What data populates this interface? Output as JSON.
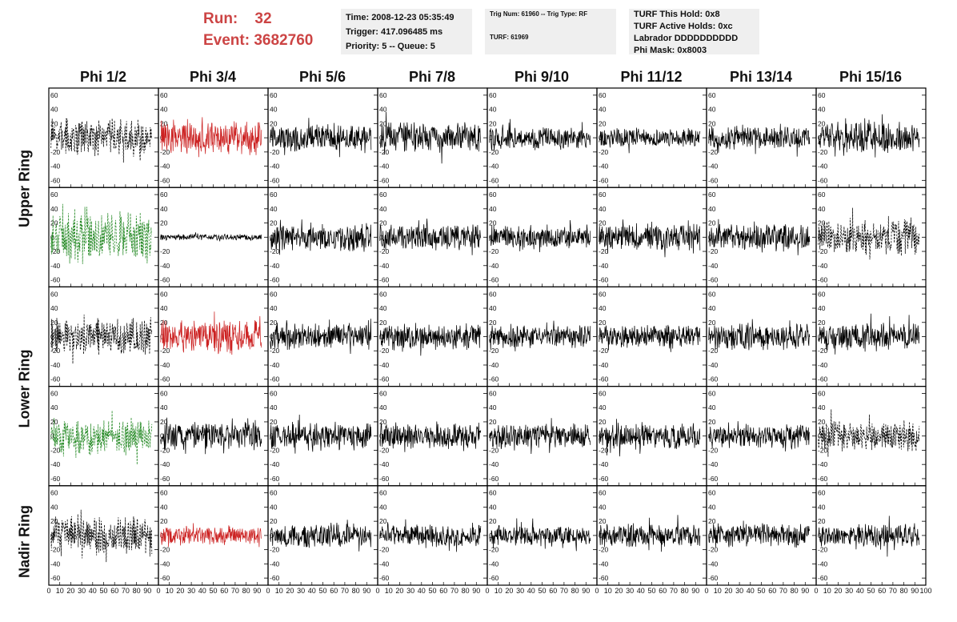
{
  "header": {
    "run_label": "Run:",
    "run_value": "32",
    "event_label": "Event:",
    "event_value": "3682760"
  },
  "info_time": {
    "time": "Time: 2008-12-23 05:35:49",
    "trigger": "Trigger: 417.096485 ms",
    "priority": "Priority: 5 -- Queue: 5"
  },
  "info_trig": {
    "trig": "Trig Num: 61960 -- Trig Type: RF",
    "turf": "TURF: 61969"
  },
  "info_turf": {
    "hold": "TURF This Hold: 0x8",
    "active": "TURF Active Holds: 0xc",
    "labrador": "Labrador DDDDDDDDDD",
    "phimask": "Phi Mask: 0x8003"
  },
  "columns": [
    "Phi 1/2",
    "Phi 3/4",
    "Phi 5/6",
    "Phi 7/8",
    "Phi 9/10",
    "Phi 11/12",
    "Phi 13/14",
    "Phi 15/16"
  ],
  "row_groups": [
    "Upper Ring",
    "Lower Ring",
    "Nadir Ring"
  ],
  "colors": {
    "red": "#cc2222",
    "green": "#228822",
    "black": "#000000"
  },
  "chart_data": {
    "type": "line",
    "x_range": [
      0,
      100
    ],
    "y_range": [
      -70,
      70
    ],
    "y_ticks": [
      -60,
      -40,
      -20,
      0,
      20,
      40,
      60
    ],
    "x_tick_labels": [
      "0",
      "10",
      "20",
      "30",
      "40",
      "50",
      "60",
      "70",
      "80",
      "90",
      "100"
    ],
    "panels": [
      [
        {
          "color": "black",
          "style": "dashed",
          "amp": 24
        },
        {
          "color": "red",
          "style": "solid",
          "amp": 22
        },
        {
          "color": "black",
          "style": "solid",
          "amp": 18
        },
        {
          "color": "black",
          "style": "solid",
          "amp": 20
        },
        {
          "color": "black",
          "style": "solid",
          "amp": 15
        },
        {
          "color": "black",
          "style": "solid",
          "amp": 12
        },
        {
          "color": "black",
          "style": "solid",
          "amp": 15
        },
        {
          "color": "black",
          "style": "solid",
          "amp": 22
        }
      ],
      [
        {
          "color": "green",
          "style": "dashed",
          "amp": 32
        },
        {
          "color": "black",
          "style": "solid",
          "amp": 4
        },
        {
          "color": "black",
          "style": "solid",
          "amp": 18
        },
        {
          "color": "black",
          "style": "solid",
          "amp": 17
        },
        {
          "color": "black",
          "style": "solid",
          "amp": 15
        },
        {
          "color": "black",
          "style": "solid",
          "amp": 18
        },
        {
          "color": "black",
          "style": "solid",
          "amp": 17
        },
        {
          "color": "black",
          "style": "dashed",
          "amp": 24
        }
      ],
      [
        {
          "color": "black",
          "style": "dashed",
          "amp": 24
        },
        {
          "color": "red",
          "style": "solid",
          "amp": 22
        },
        {
          "color": "black",
          "style": "solid",
          "amp": 17
        },
        {
          "color": "black",
          "style": "solid",
          "amp": 17
        },
        {
          "color": "black",
          "style": "solid",
          "amp": 15
        },
        {
          "color": "black",
          "style": "solid",
          "amp": 16
        },
        {
          "color": "black",
          "style": "solid",
          "amp": 17
        },
        {
          "color": "black",
          "style": "solid",
          "amp": 18
        }
      ],
      [
        {
          "color": "green",
          "style": "dashed",
          "amp": 22
        },
        {
          "color": "black",
          "style": "solid",
          "amp": 18
        },
        {
          "color": "black",
          "style": "solid",
          "amp": 18
        },
        {
          "color": "black",
          "style": "solid",
          "amp": 17
        },
        {
          "color": "black",
          "style": "solid",
          "amp": 16
        },
        {
          "color": "black",
          "style": "solid",
          "amp": 17
        },
        {
          "color": "black",
          "style": "solid",
          "amp": 15
        },
        {
          "color": "black",
          "style": "dashed",
          "amp": 20
        }
      ],
      [
        {
          "color": "black",
          "style": "dashed",
          "amp": 26
        },
        {
          "color": "red",
          "style": "solid",
          "amp": 12
        },
        {
          "color": "black",
          "style": "solid",
          "amp": 15
        },
        {
          "color": "black",
          "style": "solid",
          "amp": 15
        },
        {
          "color": "black",
          "style": "solid",
          "amp": 13
        },
        {
          "color": "black",
          "style": "solid",
          "amp": 15
        },
        {
          "color": "black",
          "style": "solid",
          "amp": 15
        },
        {
          "color": "black",
          "style": "solid",
          "amp": 15
        }
      ]
    ]
  }
}
